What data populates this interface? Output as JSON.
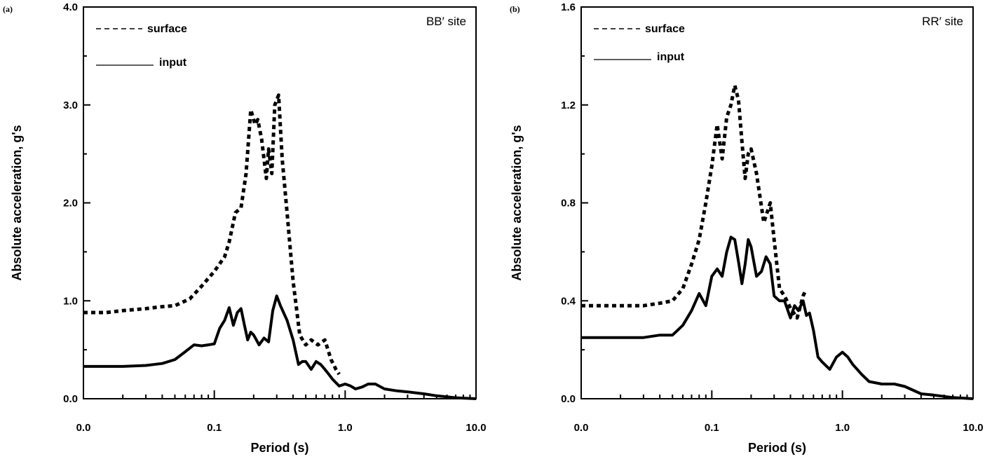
{
  "chart_data": [
    {
      "type": "line",
      "panel_label": "(a)",
      "site_label": "BB′ site",
      "xlabel": "Period (s)",
      "ylabel": "Absolute acceleration, g's",
      "x_scale": "log",
      "xlim": [
        0.01,
        10.0
      ],
      "ylim": [
        0.0,
        4.0
      ],
      "x_tick_labels": [
        "0.0",
        "0.1",
        "1.0",
        "10.0"
      ],
      "y_tick_labels": [
        "0.0",
        "1.0",
        "2.0",
        "3.0",
        "4.0"
      ],
      "legend_position": "top-left",
      "grid": false,
      "series": [
        {
          "name": "surface",
          "style": "dashed",
          "x": [
            0.01,
            0.015,
            0.02,
            0.03,
            0.04,
            0.05,
            0.065,
            0.08,
            0.1,
            0.12,
            0.13,
            0.145,
            0.16,
            0.175,
            0.19,
            0.205,
            0.215,
            0.23,
            0.25,
            0.26,
            0.275,
            0.29,
            0.31,
            0.33,
            0.36,
            0.4,
            0.45,
            0.5,
            0.55,
            0.62,
            0.7,
            0.78,
            0.85,
            0.9
          ],
          "values": [
            0.88,
            0.88,
            0.9,
            0.92,
            0.94,
            0.95,
            1.02,
            1.15,
            1.3,
            1.45,
            1.6,
            1.9,
            1.95,
            2.3,
            2.95,
            2.8,
            2.85,
            2.65,
            2.25,
            2.55,
            2.3,
            3.0,
            3.1,
            2.45,
            1.9,
            1.2,
            0.65,
            0.55,
            0.6,
            0.55,
            0.6,
            0.4,
            0.3,
            0.25
          ]
        },
        {
          "name": "input",
          "style": "solid",
          "x": [
            0.01,
            0.015,
            0.02,
            0.03,
            0.04,
            0.05,
            0.06,
            0.07,
            0.08,
            0.09,
            0.1,
            0.11,
            0.12,
            0.13,
            0.14,
            0.15,
            0.16,
            0.17,
            0.18,
            0.19,
            0.2,
            0.22,
            0.24,
            0.26,
            0.28,
            0.3,
            0.32,
            0.36,
            0.4,
            0.44,
            0.47,
            0.5,
            0.55,
            0.6,
            0.65,
            0.7,
            0.75,
            0.8,
            0.9,
            1.0,
            1.1,
            1.2,
            1.35,
            1.5,
            1.7,
            2.0,
            2.5,
            3.0,
            4.0,
            5.0,
            7.0,
            10.0
          ],
          "values": [
            0.33,
            0.33,
            0.33,
            0.34,
            0.36,
            0.4,
            0.48,
            0.55,
            0.54,
            0.55,
            0.56,
            0.72,
            0.8,
            0.93,
            0.75,
            0.88,
            0.92,
            0.75,
            0.6,
            0.68,
            0.65,
            0.55,
            0.62,
            0.58,
            0.9,
            1.05,
            0.95,
            0.8,
            0.6,
            0.35,
            0.38,
            0.38,
            0.3,
            0.38,
            0.35,
            0.3,
            0.25,
            0.2,
            0.13,
            0.15,
            0.13,
            0.1,
            0.12,
            0.15,
            0.15,
            0.1,
            0.08,
            0.07,
            0.05,
            0.03,
            0.01,
            0.0
          ]
        }
      ]
    },
    {
      "type": "line",
      "panel_label": "(b)",
      "site_label": "RR′ site",
      "xlabel": "Period (s)",
      "ylabel": "Absolute acceleration, g's",
      "x_scale": "log",
      "xlim": [
        0.01,
        10.0
      ],
      "ylim": [
        0.0,
        1.6
      ],
      "x_tick_labels": [
        "0.0",
        "0.1",
        "1.0",
        "10.0"
      ],
      "y_tick_labels": [
        "0.0",
        "0.4",
        "0.8",
        "1.2",
        "1.6"
      ],
      "legend_position": "top-left",
      "grid": false,
      "series": [
        {
          "name": "surface",
          "style": "dashed",
          "x": [
            0.01,
            0.015,
            0.02,
            0.03,
            0.04,
            0.05,
            0.06,
            0.07,
            0.08,
            0.09,
            0.1,
            0.11,
            0.12,
            0.13,
            0.14,
            0.15,
            0.16,
            0.17,
            0.18,
            0.19,
            0.2,
            0.22,
            0.25,
            0.28,
            0.3,
            0.33,
            0.36,
            0.4,
            0.45,
            0.5,
            0.52
          ],
          "values": [
            0.38,
            0.38,
            0.38,
            0.38,
            0.39,
            0.4,
            0.45,
            0.55,
            0.65,
            0.8,
            0.95,
            1.12,
            0.98,
            1.15,
            1.2,
            1.28,
            1.22,
            1.05,
            0.9,
            1.0,
            1.02,
            0.92,
            0.72,
            0.8,
            0.65,
            0.45,
            0.42,
            0.37,
            0.33,
            0.42,
            0.44
          ]
        },
        {
          "name": "input",
          "style": "solid",
          "x": [
            0.01,
            0.015,
            0.02,
            0.03,
            0.04,
            0.05,
            0.06,
            0.07,
            0.08,
            0.09,
            0.1,
            0.11,
            0.12,
            0.13,
            0.14,
            0.15,
            0.16,
            0.17,
            0.18,
            0.19,
            0.2,
            0.22,
            0.24,
            0.26,
            0.28,
            0.3,
            0.33,
            0.36,
            0.4,
            0.43,
            0.46,
            0.5,
            0.53,
            0.56,
            0.6,
            0.65,
            0.7,
            0.8,
            0.9,
            1.0,
            1.1,
            1.2,
            1.4,
            1.6,
            2.0,
            2.5,
            3.0,
            4.0,
            5.0,
            7.0,
            10.0
          ],
          "values": [
            0.25,
            0.25,
            0.25,
            0.25,
            0.26,
            0.26,
            0.3,
            0.36,
            0.43,
            0.38,
            0.5,
            0.53,
            0.5,
            0.6,
            0.66,
            0.65,
            0.56,
            0.47,
            0.55,
            0.65,
            0.62,
            0.5,
            0.52,
            0.58,
            0.55,
            0.42,
            0.4,
            0.4,
            0.33,
            0.38,
            0.36,
            0.4,
            0.34,
            0.35,
            0.28,
            0.17,
            0.15,
            0.12,
            0.17,
            0.19,
            0.17,
            0.14,
            0.1,
            0.07,
            0.06,
            0.06,
            0.05,
            0.02,
            0.015,
            0.005,
            0.0
          ]
        }
      ]
    }
  ]
}
